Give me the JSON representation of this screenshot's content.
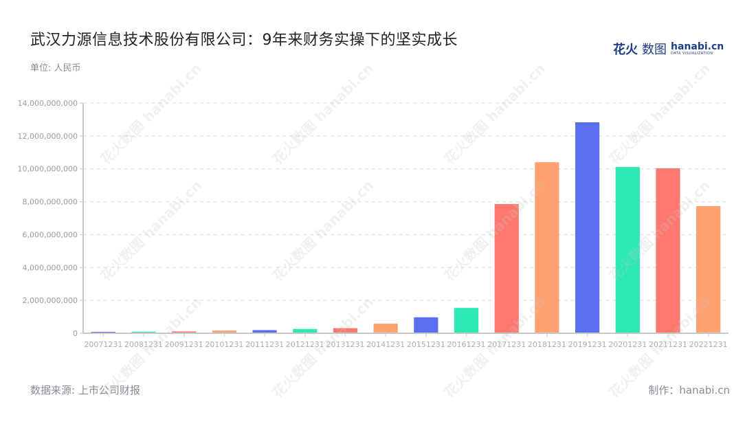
{
  "header": {
    "title": "武汉力源信息技术股份有限公司：9年来财务实操下的坚实成长",
    "unit": "单位: 人民币"
  },
  "logo": {
    "cn_bold": "花火",
    "cn_light": "数图",
    "en": "hanabi.cn",
    "sub": "DATA VISUALIZATION"
  },
  "footer": {
    "source": "数据来源: 上市公司财报",
    "credit": "制作：hanabi.cn"
  },
  "watermark": "花火数图 hanabi.cn",
  "colors": {
    "blue": "#5a6fed",
    "green": "#2ee8b2",
    "red": "#ff7870",
    "orange": "#ffa170",
    "axis": "#c8c8c8",
    "grid": "#dcdcdc"
  },
  "chart_data": {
    "type": "bar",
    "title": "武汉力源信息技术股份有限公司：9年来财务实操下的坚实成长",
    "subtitle": "单位: 人民币",
    "xlabel": "",
    "ylabel": "",
    "ylim": [
      0,
      14000000000
    ],
    "yticks": [
      0,
      2000000000,
      4000000000,
      6000000000,
      8000000000,
      10000000000,
      12000000000,
      14000000000
    ],
    "ytick_labels": [
      "0",
      "2,000,000,000",
      "4,000,000,000",
      "6,000,000,000",
      "8,000,000,000",
      "10,000,000,000",
      "12,000,000,000",
      "14,000,000,000"
    ],
    "grid": true,
    "legend": null,
    "categories": [
      "20071231",
      "20081231",
      "20091231",
      "20101231",
      "20111231",
      "20121231",
      "20131231",
      "20141231",
      "20151231",
      "20161231",
      "20171231",
      "20181231",
      "20191231",
      "20201231",
      "20211231",
      "20221231"
    ],
    "values": [
      60000000,
      90000000,
      110000000,
      160000000,
      190000000,
      260000000,
      310000000,
      580000000,
      970000000,
      1540000000,
      7860000000,
      10400000000,
      12830000000,
      10110000000,
      10030000000,
      7730000000
    ],
    "bar_colors": [
      "#5a6fed",
      "#2ee8b2",
      "#ff7870",
      "#ffa170",
      "#5a6fed",
      "#2ee8b2",
      "#ff7870",
      "#ffa170",
      "#5a6fed",
      "#2ee8b2",
      "#ff7870",
      "#ffa170",
      "#5a6fed",
      "#2ee8b2",
      "#ff7870",
      "#ffa170"
    ]
  }
}
